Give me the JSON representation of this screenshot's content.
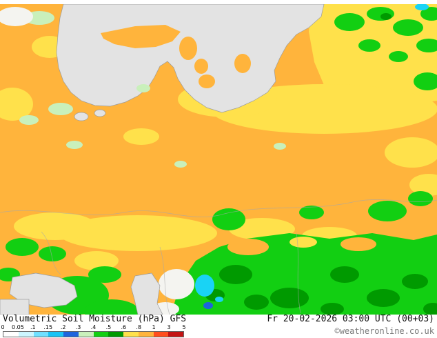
{
  "footer": {
    "title": "Volumetric Soil Moisture (hPa) GFS",
    "datetime": "Fr 20-02-2026 03:00 UTC (00+03)",
    "copyright": "©weatheronline.co.uk"
  },
  "legend": {
    "labels": [
      "0",
      "0.05",
      ".1",
      ".15",
      ".2",
      ".3",
      ".4",
      ".5",
      ".6",
      ".8",
      "1",
      "3",
      "5"
    ],
    "colors": [
      "#ffffff",
      "#ccf6ff",
      "#6fe0ff",
      "#19c3f5",
      "#1e64dc",
      "#c9f0bb",
      "#12cf12",
      "#009a00",
      "#ffe14b",
      "#ffb43c",
      "#ff4f1e",
      "#c41414"
    ]
  },
  "palette": {
    "sea": "#e3e3e3",
    "coast": "#9c9c9c",
    "border": "#a8a8a8",
    "orange": "#ffb43c",
    "yellow": "#ffe14b",
    "green": "#12cf12",
    "dark_green": "#009a00",
    "pale_green": "#c9f0bb",
    "cyan": "#19d3f5",
    "blue": "#1e64dc",
    "white_patch": "#f4f4f0"
  }
}
